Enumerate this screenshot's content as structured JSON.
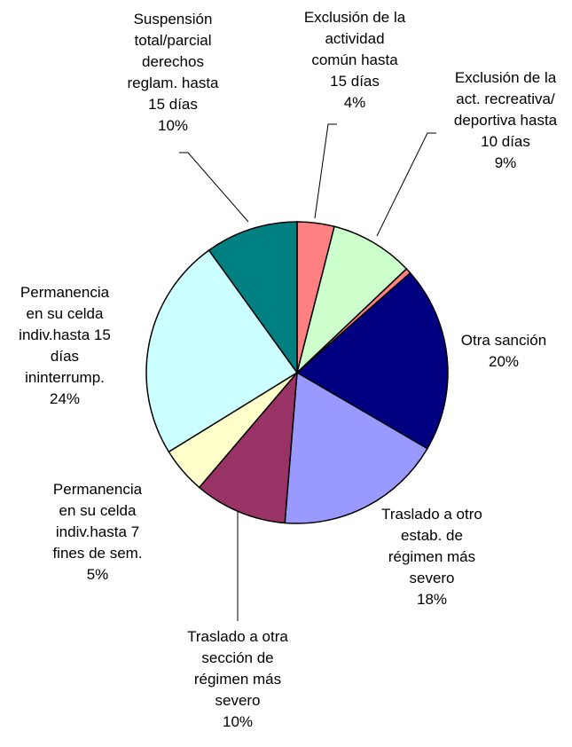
{
  "chart_data": {
    "type": "pie",
    "categories": [
      "Exclusión de la\nactividad\ncomún hasta\n15 días",
      "Exclusión de la\nact. recreativa/\ndeportiva hasta\n10 días",
      null,
      "Otra sanción",
      "Traslado a otro\nestab. de\nrégimen más\nsevero",
      "Traslado a otra\nsección de\nrégimen más\nsevero",
      "Permanencia\nen su celda\nindiv.hasta 7\nfines de sem.",
      "Permanencia\nen su celda\nindiv.hasta 15\ndías\nininterrump.",
      "Suspensión\ntotal/parcial\nderechos\nreglam. hasta\n15 días"
    ],
    "values": [
      4,
      9,
      0.6,
      20,
      18,
      10,
      5,
      24,
      10
    ],
    "value_labels": [
      "4%",
      "9%",
      null,
      "20%",
      "18%",
      "10%",
      "5%",
      "24%",
      "10%"
    ],
    "colors": [
      "#ff8080",
      "#ccffcc",
      "#ff8080",
      "#000080",
      "#9999ff",
      "#993366",
      "#ffffcc",
      "#ccffff",
      "#008080"
    ]
  }
}
